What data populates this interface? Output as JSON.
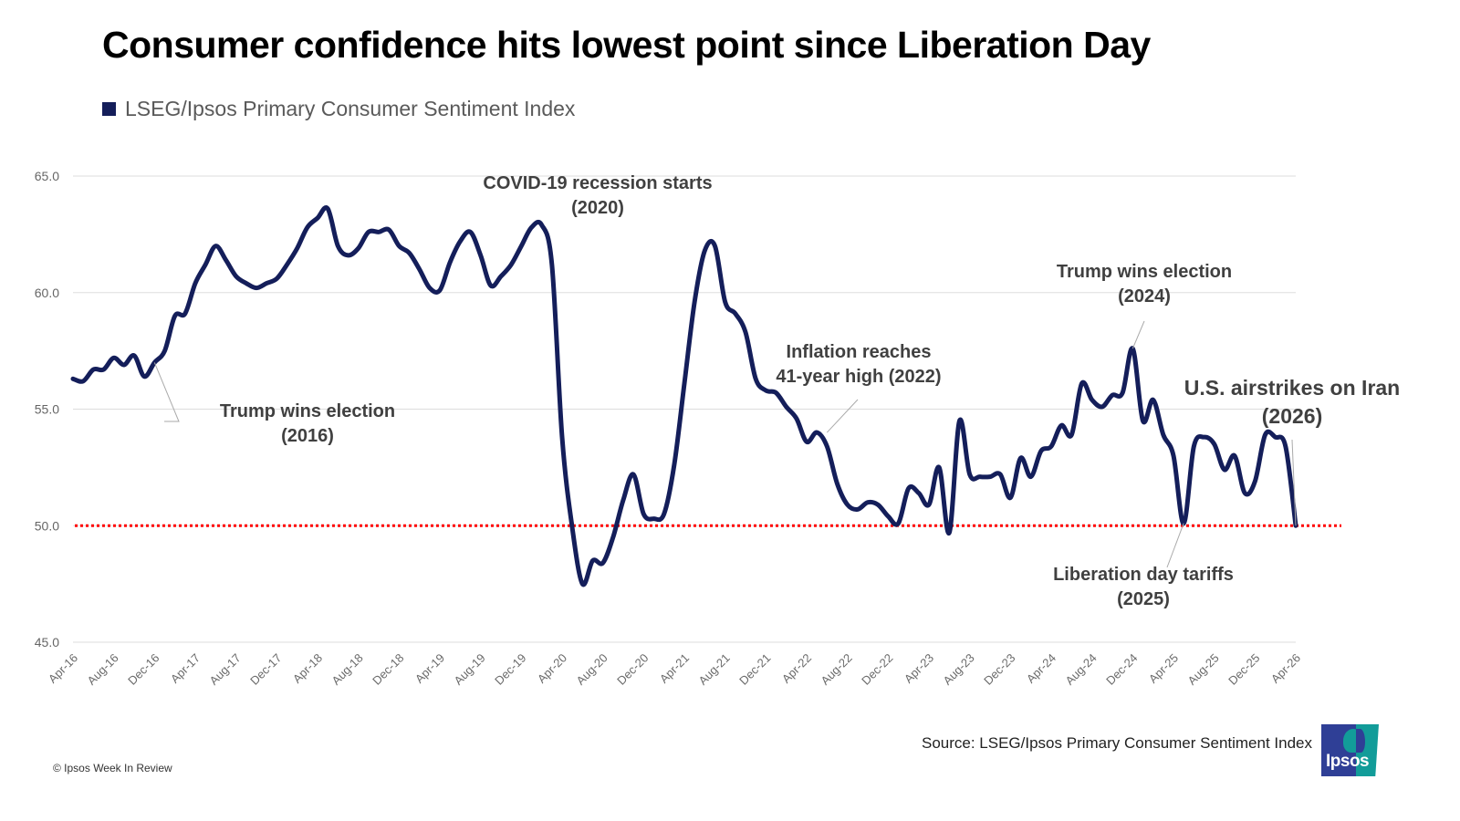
{
  "header": {
    "title": "Consumer confidence hits lowest point since Liberation Day"
  },
  "legend": {
    "label": "LSEG/Ipsos Primary Consumer Sentiment Index",
    "color": "#141e5a"
  },
  "footer": {
    "source": "Source: LSEG/Ipsos Primary Consumer Sentiment Index",
    "copyright": "© Ipsos Week In Review",
    "logo_text": "Ipsos"
  },
  "chart_data": {
    "type": "line",
    "title": "Consumer confidence hits lowest point since Liberation Day",
    "xlabel": "",
    "ylabel": "",
    "ylim": [
      45,
      65
    ],
    "yticks": [
      "65.0",
      "60.0",
      "55.0",
      "50.0",
      "45.0"
    ],
    "ytick_values": [
      65,
      60,
      55,
      50,
      45
    ],
    "grid": true,
    "legend_position": "top-left",
    "x_start": "Apr-16",
    "x_end": "Apr-26",
    "xtick_labels": [
      "Apr-16",
      "Aug-16",
      "Dec-16",
      "Apr-17",
      "Aug-17",
      "Dec-17",
      "Apr-18",
      "Aug-18",
      "Dec-18",
      "Apr-19",
      "Aug-19",
      "Dec-19",
      "Apr-20",
      "Aug-20",
      "Dec-20",
      "Apr-21",
      "Aug-21",
      "Dec-21",
      "Apr-22",
      "Aug-22",
      "Dec-22",
      "Apr-23",
      "Aug-23",
      "Dec-23",
      "Apr-24",
      "Aug-24",
      "Dec-24",
      "Apr-25",
      "Aug-25",
      "Dec-25",
      "Apr-26"
    ],
    "reference_line": {
      "value": 50.0,
      "color": "#ff0000",
      "style": "dotted"
    },
    "series": [
      {
        "name": "LSEG/Ipsos Primary Consumer Sentiment Index",
        "color": "#141e5a",
        "values": [
          56.3,
          56.2,
          56.7,
          56.7,
          57.2,
          56.9,
          57.3,
          56.4,
          57.0,
          57.5,
          59.0,
          59.1,
          60.4,
          61.2,
          62.0,
          61.4,
          60.7,
          60.4,
          60.2,
          60.4,
          60.6,
          61.2,
          61.9,
          62.8,
          63.2,
          63.6,
          62.0,
          61.6,
          61.9,
          62.6,
          62.6,
          62.7,
          62.0,
          61.7,
          61.0,
          60.2,
          60.1,
          61.3,
          62.2,
          62.6,
          61.6,
          60.3,
          60.7,
          61.2,
          62.0,
          62.8,
          62.9,
          61.2,
          53.8,
          49.9,
          47.5,
          48.5,
          48.4,
          49.5,
          51.1,
          52.2,
          50.5,
          50.3,
          50.5,
          52.6,
          56.1,
          59.6,
          61.8,
          62.0,
          59.6,
          59.1,
          58.3,
          56.3,
          55.8,
          55.7,
          55.1,
          54.6,
          53.6,
          54.0,
          53.4,
          51.8,
          50.9,
          50.7,
          51.0,
          50.9,
          50.4,
          50.1,
          51.6,
          51.4,
          50.9,
          52.5,
          49.7,
          54.5,
          52.2,
          52.1,
          52.1,
          52.2,
          51.2,
          52.9,
          52.1,
          53.2,
          53.4,
          54.3,
          53.9,
          56.1,
          55.4,
          55.1,
          55.6,
          55.7,
          57.6,
          54.5,
          55.4,
          53.9,
          53.0,
          50.1,
          53.4,
          53.8,
          53.5,
          52.4,
          53.0,
          51.4,
          51.9,
          53.9,
          53.8,
          53.4,
          50.0
        ]
      }
    ],
    "annotations": [
      {
        "lines": [
          "Trump wins election",
          "(2016)"
        ],
        "month_index": 8,
        "value": 57.0
      },
      {
        "lines": [
          "COVID-19 recession starts",
          "(2020)"
        ],
        "month_index": 47,
        "value": 62.9
      },
      {
        "lines": [
          "Inflation reaches",
          "41-year high (2022)"
        ],
        "month_index": 74,
        "value": 54.0
      },
      {
        "lines": [
          "Trump wins election",
          "(2024)"
        ],
        "month_index": 104,
        "value": 57.6
      },
      {
        "lines": [
          "Liberation day tariffs",
          "(2025)"
        ],
        "month_index": 109,
        "value": 50.1
      },
      {
        "lines": [
          "U.S. airstrikes on Iran",
          "(2026)"
        ],
        "month_index": 120,
        "value": 50.0
      }
    ]
  }
}
